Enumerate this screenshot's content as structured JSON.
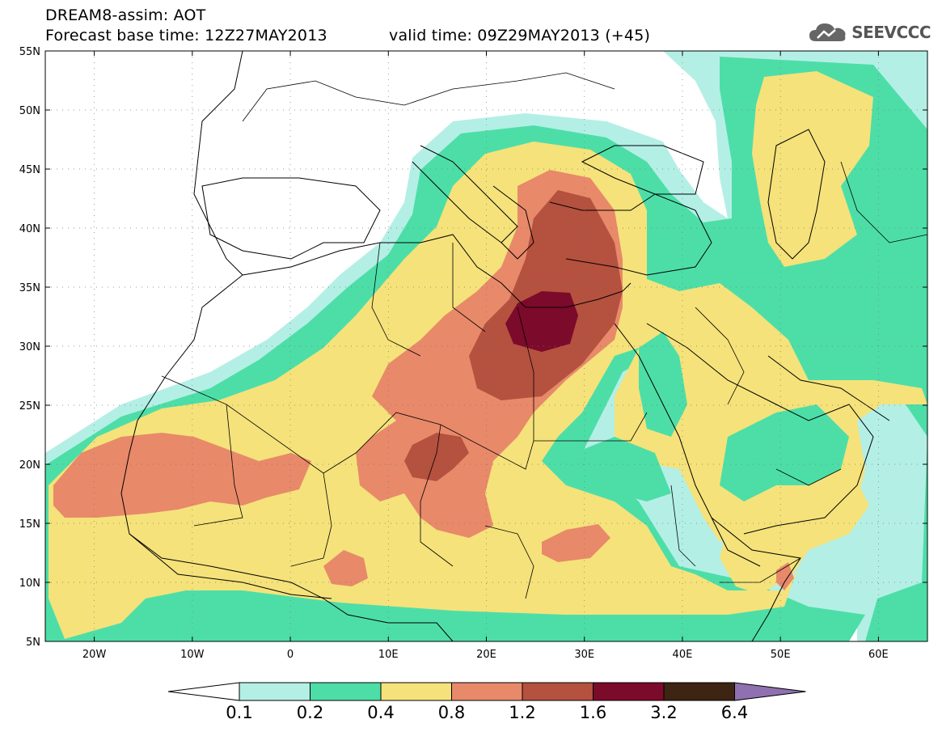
{
  "header": {
    "title": "DREAM8-assim: AOT",
    "base_time": "Forecast base time: 12Z27MAY2013",
    "valid_time": "valid time: 09Z29MAY2013 (+45)"
  },
  "logo": {
    "text": "SEEVCCC",
    "icon": "cloud-icon"
  },
  "map": {
    "lon_range": [
      -25,
      65
    ],
    "lat_range": [
      5,
      55
    ],
    "lat_ticks": [
      "5N",
      "10N",
      "15N",
      "20N",
      "25N",
      "30N",
      "35N",
      "40N",
      "45N",
      "50N",
      "55N"
    ],
    "lon_ticks": [
      "20W",
      "10W",
      "0",
      "10E",
      "20E",
      "30E",
      "40E",
      "50E",
      "60E"
    ],
    "lat_values": [
      5,
      10,
      15,
      20,
      25,
      30,
      35,
      40,
      45,
      50,
      55
    ],
    "lon_values": [
      -20,
      -10,
      0,
      10,
      20,
      30,
      40,
      50,
      60
    ],
    "grid": true
  },
  "legend": {
    "labels": [
      "0.1",
      "0.2",
      "0.4",
      "0.8",
      "1.2",
      "1.6",
      "3.2",
      "6.4"
    ],
    "colors": [
      "#b4efe6",
      "#4ddea8",
      "#f5e27a",
      "#e8896a",
      "#b5513f",
      "#7c0a2a",
      "#3d2413"
    ],
    "min_arrow_color": "#ffffff",
    "max_arrow_color": "#8f70b0"
  }
}
